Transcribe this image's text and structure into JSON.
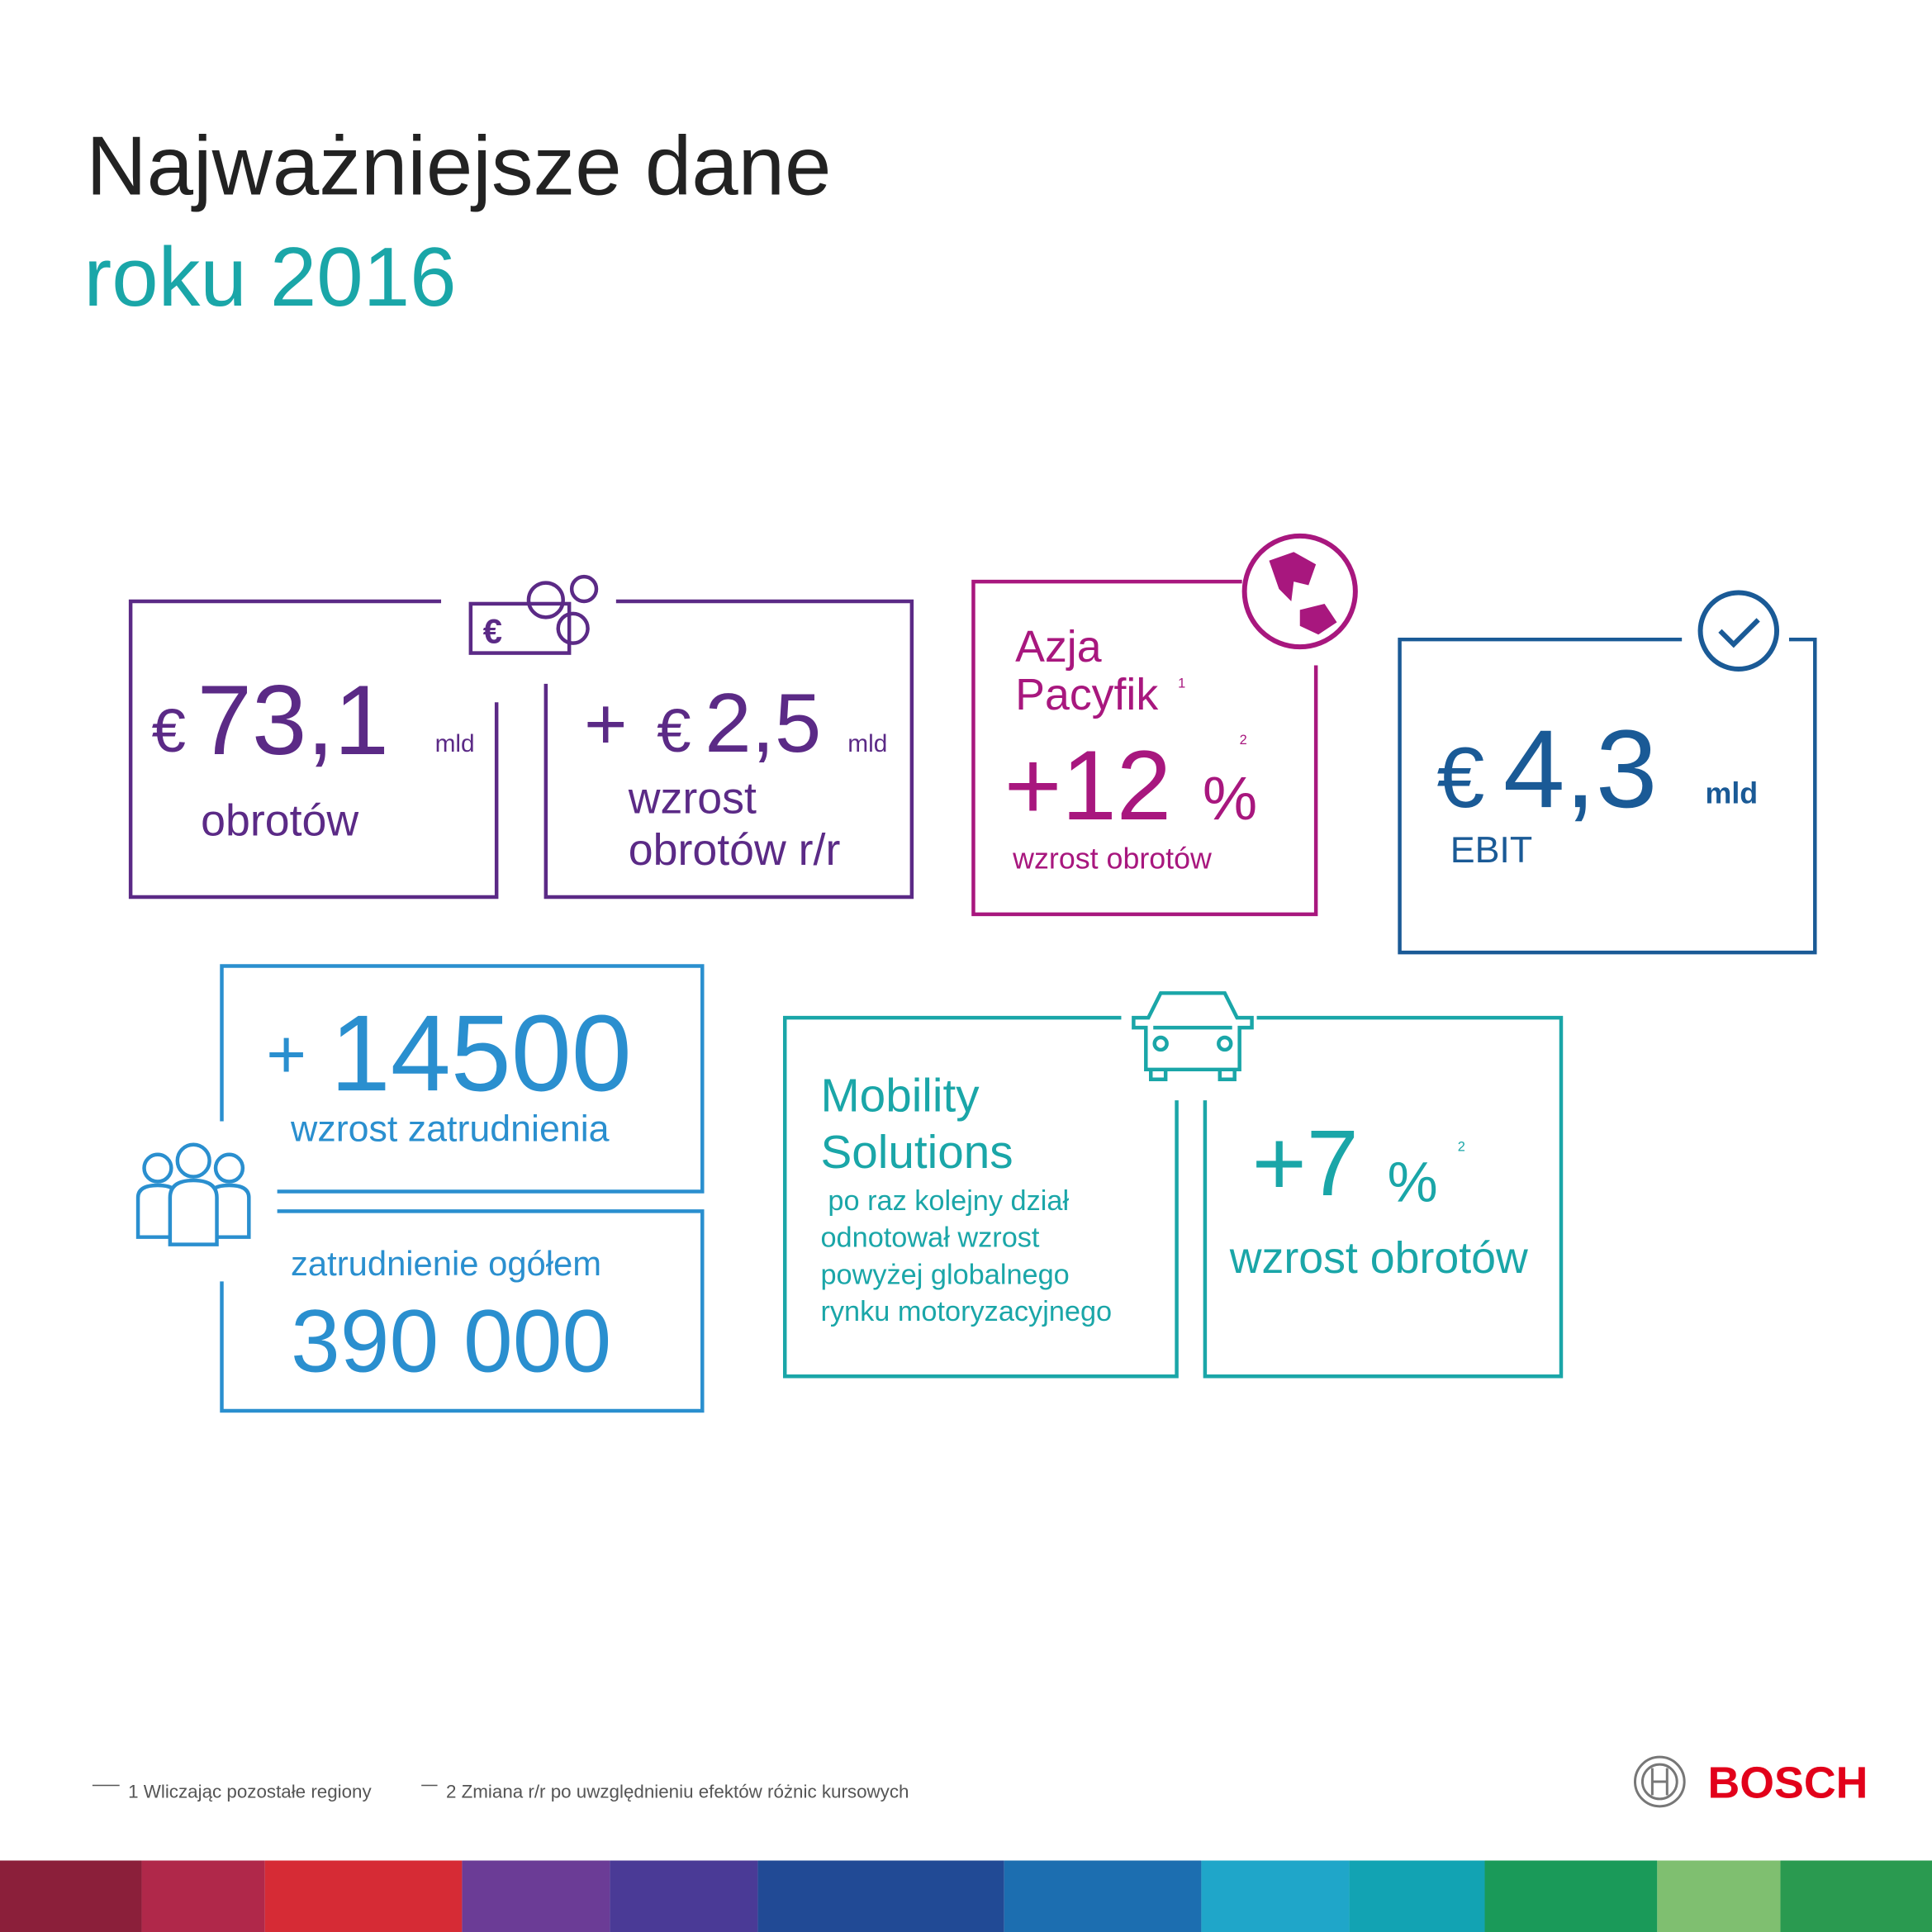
{
  "header": {
    "title": "Najważniejsze dane",
    "subtitle": "roku 2016"
  },
  "revenue": {
    "currency": "€",
    "value": "73,1",
    "unit": "mld",
    "label": "obrotów"
  },
  "revenue_growth": {
    "prefix": "+",
    "currency": "€",
    "value": "2,5",
    "unit": "mld",
    "label_lines": [
      "wzrost",
      "obrotów r/r"
    ]
  },
  "asia_pacific": {
    "region_lines": [
      "Azja",
      "Pacyfik"
    ],
    "region_note": "1",
    "value": "+12",
    "unit": "%",
    "note": "2",
    "label": "wzrost obrotów"
  },
  "ebit": {
    "currency": "€",
    "value": "4,3",
    "unit": "mld",
    "label": "EBIT"
  },
  "employment_growth": {
    "prefix": "+",
    "value": "14500",
    "label": "wzrost zatrudnienia"
  },
  "employment_total": {
    "label": "zatrudnienie ogółem",
    "value": "390 000"
  },
  "mobility": {
    "title_lines": [
      "Mobility",
      "Solutions"
    ],
    "text_lines": [
      "po raz kolejny dział",
      "odnotował wzrost",
      "powyżej globalnego",
      "rynku motoryzacyjnego"
    ]
  },
  "mobility_growth": {
    "value": "+7",
    "unit": "%",
    "note": "2",
    "label": "wzrost obrotów"
  },
  "footnotes": [
    "1 Wliczając pozostałe regiony",
    "2 Zmiana r/r po uwzględnieniu efektów różnic kursowych"
  ],
  "logo": "BOSCH"
}
